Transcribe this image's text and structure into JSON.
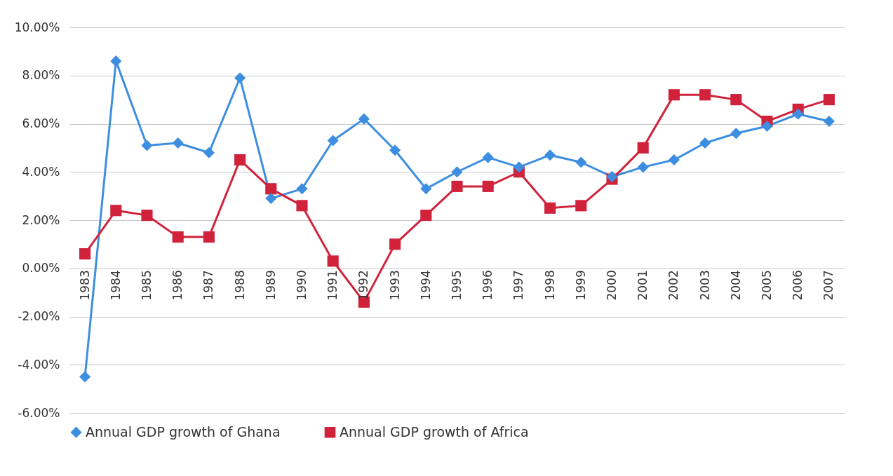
{
  "chart_data": {
    "type": "line",
    "categories": [
      "1983",
      "1984",
      "1985",
      "1986",
      "1987",
      "1988",
      "1989",
      "1990",
      "1991",
      "1992",
      "1993",
      "1994",
      "1995",
      "1996",
      "1997",
      "1998",
      "1999",
      "2000",
      "2001",
      "2002",
      "2003",
      "2004",
      "2005",
      "2006",
      "2007"
    ],
    "series": [
      {
        "name": "Annual GDP growth of Ghana",
        "color": "#3d8ee0",
        "marker": "diamond",
        "values": [
          -4.5,
          8.6,
          5.1,
          5.2,
          4.8,
          7.9,
          2.9,
          3.3,
          5.3,
          6.2,
          4.9,
          3.3,
          4.0,
          4.6,
          4.2,
          4.7,
          4.4,
          3.8,
          4.2,
          4.5,
          5.2,
          5.6,
          5.9,
          6.4,
          6.1
        ]
      },
      {
        "name": "Annual GDP growth of Africa",
        "color": "#d0223a",
        "marker": "square",
        "values": [
          0.6,
          2.4,
          2.2,
          1.3,
          1.3,
          4.5,
          3.3,
          2.6,
          0.3,
          -1.4,
          1.0,
          2.2,
          3.4,
          3.4,
          4.0,
          2.5,
          2.6,
          3.7,
          5.0,
          7.2,
          7.2,
          7.0,
          6.1,
          6.6,
          7.0
        ]
      }
    ],
    "ylim": [
      -6,
      10
    ],
    "yticks": [
      {
        "value": -6,
        "label": "-6.00%"
      },
      {
        "value": -4,
        "label": "-4.00%"
      },
      {
        "value": -2,
        "label": "-2.00%"
      },
      {
        "value": 0,
        "label": "0.00%"
      },
      {
        "value": 2,
        "label": "2.00%"
      },
      {
        "value": 4,
        "label": "4.00%"
      },
      {
        "value": 6,
        "label": "6.00%"
      },
      {
        "value": 8,
        "label": "8.00%"
      },
      {
        "value": 10,
        "label": "10.00%"
      }
    ],
    "grid": "y",
    "legend": "bottom",
    "line_style": "solid"
  }
}
